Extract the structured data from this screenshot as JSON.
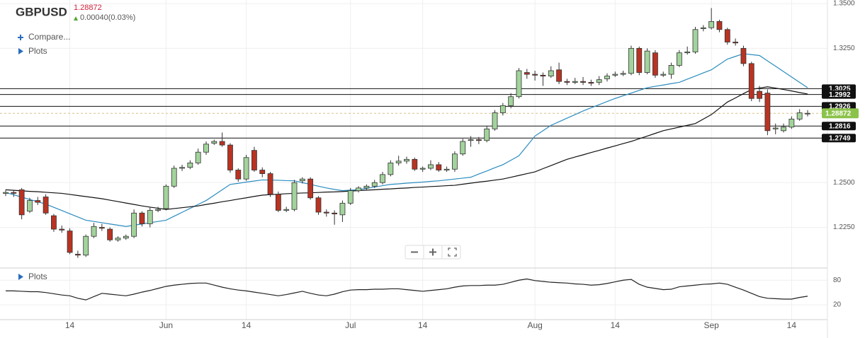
{
  "chart_data": [
    {
      "type": "candlestick",
      "title": "GBPUSD",
      "last_price": 1.28872,
      "change": "0.00040(0.03%)",
      "compare_label": "Compare...",
      "plots_label": "Plots",
      "categories": [
        null,
        null,
        null,
        null,
        null,
        null,
        null,
        null,
        "14",
        null,
        null,
        null,
        null,
        null,
        null,
        null,
        null,
        null,
        null,
        null,
        "Jun",
        null,
        null,
        null,
        null,
        null,
        null,
        null,
        null,
        null,
        "14",
        null,
        null,
        null,
        null,
        null,
        null,
        null,
        null,
        null,
        null,
        null,
        null,
        "Jul",
        null,
        null,
        null,
        null,
        null,
        null,
        null,
        null,
        "14",
        null,
        null,
        null,
        null,
        null,
        null,
        null,
        null,
        null,
        null,
        null,
        null,
        null,
        "Aug",
        null,
        null,
        null,
        null,
        null,
        null,
        null,
        null,
        null,
        "14",
        null,
        null,
        null,
        null,
        null,
        null,
        null,
        null,
        null,
        null,
        null,
        "Sep",
        null,
        null,
        null,
        null,
        null,
        null,
        null,
        null,
        null,
        "14",
        null,
        null
      ],
      "ohlc": [
        [
          1.244,
          1.246,
          1.2425,
          1.2445
        ],
        [
          1.2445,
          1.2455,
          1.242,
          1.244
        ],
        [
          1.246,
          1.247,
          1.2295,
          1.232
        ],
        [
          1.234,
          1.2415,
          1.233,
          1.24
        ],
        [
          1.24,
          1.242,
          1.2375,
          1.239
        ],
        [
          1.242,
          1.2435,
          1.232,
          1.233
        ],
        [
          1.2315,
          1.2325,
          1.2225,
          1.224
        ],
        [
          1.224,
          1.226,
          1.222,
          1.2235
        ],
        [
          1.223,
          1.2245,
          1.21,
          1.211
        ],
        [
          1.21,
          1.212,
          1.208,
          1.2095
        ],
        [
          1.2095,
          1.221,
          1.2085,
          1.22
        ],
        [
          1.22,
          1.2275,
          1.219,
          1.2255
        ],
        [
          1.225,
          1.227,
          1.223,
          1.2245
        ],
        [
          1.224,
          1.225,
          1.217,
          1.218
        ],
        [
          1.218,
          1.22,
          1.217,
          1.219
        ],
        [
          1.219,
          1.221,
          1.218,
          1.22
        ],
        [
          1.22,
          1.235,
          1.219,
          1.233
        ],
        [
          1.233,
          1.234,
          1.2255,
          1.227
        ],
        [
          1.227,
          1.236,
          1.225,
          1.2345
        ],
        [
          1.2345,
          1.2365,
          1.2335,
          1.235
        ],
        [
          1.2355,
          1.249,
          1.2345,
          1.248
        ],
        [
          1.248,
          1.2595,
          1.247,
          1.258
        ],
        [
          1.258,
          1.26,
          1.2565,
          1.2585
        ],
        [
          1.2585,
          1.2625,
          1.2575,
          1.261
        ],
        [
          1.261,
          1.269,
          1.26,
          1.267
        ],
        [
          1.267,
          1.273,
          1.2655,
          1.2715
        ],
        [
          1.272,
          1.274,
          1.271,
          1.273
        ],
        [
          1.273,
          1.278,
          1.27,
          1.271
        ],
        [
          1.271,
          1.272,
          1.2555,
          1.257
        ],
        [
          1.257,
          1.258,
          1.2505,
          1.252
        ],
        [
          1.252,
          1.2655,
          1.251,
          1.264
        ],
        [
          1.268,
          1.27,
          1.256,
          1.257
        ],
        [
          1.257,
          1.2585,
          1.253,
          1.255
        ],
        [
          1.255,
          1.256,
          1.242,
          1.2435
        ],
        [
          1.2435,
          1.245,
          1.2335,
          1.2345
        ],
        [
          1.2345,
          1.2365,
          1.2335,
          1.235
        ],
        [
          1.235,
          1.2515,
          1.234,
          1.25
        ],
        [
          1.251,
          1.253,
          1.2495,
          1.252
        ],
        [
          1.252,
          1.253,
          1.2405,
          1.2415
        ],
        [
          1.2415,
          1.2425,
          1.232,
          1.2335
        ],
        [
          1.2335,
          1.235,
          1.231,
          1.233
        ],
        [
          1.233,
          1.2345,
          1.2265,
          1.2325
        ],
        [
          1.232,
          1.24,
          1.228,
          1.2385
        ],
        [
          1.2385,
          1.247,
          1.2375,
          1.2455
        ],
        [
          1.2455,
          1.248,
          1.2445,
          1.247
        ],
        [
          1.247,
          1.249,
          1.246,
          1.248
        ],
        [
          1.248,
          1.2515,
          1.247,
          1.25
        ],
        [
          1.25,
          1.256,
          1.249,
          1.2545
        ],
        [
          1.2545,
          1.2625,
          1.2535,
          1.261
        ],
        [
          1.261,
          1.265,
          1.2595,
          1.262
        ],
        [
          1.262,
          1.2645,
          1.2605,
          1.263
        ],
        [
          1.263,
          1.264,
          1.2565,
          1.2575
        ],
        [
          1.2575,
          1.259,
          1.256,
          1.258
        ],
        [
          1.258,
          1.2625,
          1.257,
          1.26
        ],
        [
          1.26,
          1.2615,
          1.256,
          1.257
        ],
        [
          1.257,
          1.259,
          1.256,
          1.2575
        ],
        [
          1.2575,
          1.2675,
          1.256,
          1.266
        ],
        [
          1.266,
          1.2745,
          1.265,
          1.273
        ],
        [
          1.2735,
          1.276,
          1.27,
          1.274
        ],
        [
          1.274,
          1.2755,
          1.2715,
          1.2735
        ],
        [
          1.2735,
          1.2815,
          1.2725,
          1.28
        ],
        [
          1.28,
          1.2905,
          1.279,
          1.289
        ],
        [
          1.289,
          1.2945,
          1.2875,
          1.293
        ],
        [
          1.293,
          1.3,
          1.2915,
          1.298
        ],
        [
          1.298,
          1.314,
          1.297,
          1.3125
        ],
        [
          1.3115,
          1.3135,
          1.308,
          1.3105
        ],
        [
          1.3105,
          1.3125,
          1.307,
          1.31
        ],
        [
          1.31,
          1.3115,
          1.304,
          1.3095
        ],
        [
          1.3095,
          1.315,
          1.3085,
          1.3125
        ],
        [
          1.313,
          1.317,
          1.305,
          1.3065
        ],
        [
          1.3065,
          1.308,
          1.3045,
          1.306
        ],
        [
          1.306,
          1.3085,
          1.305,
          1.3065
        ],
        [
          1.3065,
          1.309,
          1.3045,
          1.306
        ],
        [
          1.306,
          1.3075,
          1.304,
          1.3055
        ],
        [
          1.306,
          1.3095,
          1.3045,
          1.3075
        ],
        [
          1.308,
          1.311,
          1.3065,
          1.3095
        ],
        [
          1.31,
          1.312,
          1.309,
          1.3105
        ],
        [
          1.3105,
          1.3125,
          1.3095,
          1.311
        ],
        [
          1.311,
          1.3265,
          1.31,
          1.325
        ],
        [
          1.325,
          1.326,
          1.31,
          1.3115
        ],
        [
          1.3115,
          1.325,
          1.3105,
          1.3235
        ],
        [
          1.3225,
          1.324,
          1.3085,
          1.31
        ],
        [
          1.31,
          1.312,
          1.309,
          1.3105
        ],
        [
          1.3105,
          1.317,
          1.308,
          1.3155
        ],
        [
          1.3155,
          1.324,
          1.3145,
          1.3225
        ],
        [
          1.3225,
          1.326,
          1.3215,
          1.323
        ],
        [
          1.323,
          1.337,
          1.322,
          1.3355
        ],
        [
          1.336,
          1.338,
          1.3345,
          1.3365
        ],
        [
          1.3365,
          1.3475,
          1.3355,
          1.34
        ],
        [
          1.34,
          1.341,
          1.334,
          1.3355
        ],
        [
          1.3355,
          1.3365,
          1.327,
          1.3285
        ],
        [
          1.3285,
          1.3305,
          1.3265,
          1.328
        ],
        [
          1.325,
          1.3265,
          1.315,
          1.3165
        ],
        [
          1.3165,
          1.3175,
          1.2955,
          1.297
        ],
        [
          1.301,
          1.304,
          1.295,
          1.297
        ],
        [
          1.3,
          1.302,
          1.2765,
          1.279
        ],
        [
          1.28,
          1.283,
          1.277,
          1.2805
        ],
        [
          1.279,
          1.283,
          1.278,
          1.281
        ],
        [
          1.281,
          1.287,
          1.28,
          1.2855
        ],
        [
          1.2855,
          1.291,
          1.2845,
          1.289
        ],
        [
          1.2885,
          1.2905,
          1.287,
          1.28872
        ]
      ],
      "up_color": "#a3d39c",
      "down_color": "#b93322",
      "series": [
        {
          "color": "#2b8cbf",
          "values": [
            1.2445,
            1.2432,
            1.2419,
            1.2406,
            1.2393,
            1.238,
            1.2362,
            1.2344,
            1.2326,
            1.2308,
            1.229,
            1.2283,
            1.2276,
            1.2269,
            1.2262,
            1.2255,
            1.2262,
            1.2269,
            1.2276,
            1.2283,
            1.229,
            1.2312,
            1.2334,
            1.2356,
            1.2378,
            1.24,
            1.243,
            1.246,
            1.249,
            1.2496,
            1.2503,
            1.2509,
            1.2515,
            1.2514,
            1.2513,
            1.2511,
            1.251,
            1.25,
            1.249,
            1.248,
            1.247,
            1.2462,
            1.2455,
            1.2458,
            1.246,
            1.2468,
            1.2475,
            1.2483,
            1.249,
            1.2493,
            1.2497,
            1.25,
            1.2503,
            1.2507,
            1.251,
            1.2515,
            1.252,
            1.2525,
            1.253,
            1.2548,
            1.2565,
            1.2583,
            1.26,
            1.2625,
            1.265,
            1.2705,
            1.276,
            1.279,
            1.282,
            1.284,
            1.286,
            1.288,
            1.29,
            1.2918,
            1.2935,
            1.2953,
            1.297,
            1.2985,
            1.3,
            1.3015,
            1.303,
            1.3038,
            1.3045,
            1.3053,
            1.306,
            1.3078,
            1.3095,
            1.3113,
            1.313,
            1.316,
            1.319,
            1.3205,
            1.322,
            1.3215,
            1.321,
            1.318,
            1.315,
            1.312,
            1.309,
            1.306,
            1.303
          ]
        },
        {
          "color": "#111111",
          "values": [
            1.246,
            1.2457,
            1.2454,
            1.2451,
            1.2449,
            1.2446,
            1.2443,
            1.244,
            1.2434,
            1.2428,
            1.2422,
            1.2416,
            1.241,
            1.2402,
            1.2394,
            1.2386,
            1.2378,
            1.237,
            1.2363,
            1.2357,
            1.235,
            1.2355,
            1.236,
            1.2365,
            1.237,
            1.2378,
            1.2385,
            1.2393,
            1.24,
            1.2408,
            1.2415,
            1.2423,
            1.243,
            1.2433,
            1.2435,
            1.2438,
            1.244,
            1.2442,
            1.2443,
            1.2445,
            1.2447,
            1.2448,
            1.245,
            1.2453,
            1.2455,
            1.2458,
            1.246,
            1.2463,
            1.2465,
            1.2468,
            1.247,
            1.2473,
            1.2475,
            1.2478,
            1.248,
            1.2483,
            1.2485,
            1.2491,
            1.2497,
            1.2503,
            1.2508,
            1.2514,
            1.252,
            1.253,
            1.254,
            1.255,
            1.256,
            1.2578,
            1.2595,
            1.2613,
            1.263,
            1.2643,
            1.2655,
            1.2668,
            1.268,
            1.2693,
            1.2705,
            1.2718,
            1.273,
            1.2745,
            1.276,
            1.2775,
            1.279,
            1.28,
            1.281,
            1.282,
            1.283,
            1.2855,
            1.288,
            1.2915,
            1.295,
            1.2973,
            1.2997,
            1.302,
            1.3028,
            1.3035,
            1.3028,
            1.302,
            1.3012,
            1.3003,
            1.2995
          ]
        }
      ],
      "levels": [
        1.3025,
        1.2992,
        1.2926,
        1.2816,
        1.2749
      ],
      "ylim": [
        1.2027,
        1.352
      ],
      "yticks": [
        {
          "value": 1.35,
          "label": "1.3500"
        },
        {
          "value": 1.325,
          "label": "1.3250"
        },
        {
          "value": 1.25,
          "label": "1.2500"
        },
        {
          "value": 1.225,
          "label": "1.2250"
        }
      ],
      "grid": true
    },
    {
      "type": "line",
      "title": "Plots",
      "ylim": [
        -16,
        108
      ],
      "yticks": [
        80,
        20
      ],
      "series": [
        {
          "color": "#222222",
          "values": [
            54,
            54,
            53,
            52,
            52,
            50,
            47,
            44,
            42,
            36,
            32,
            40,
            48,
            46,
            44,
            42,
            46,
            51,
            55,
            60,
            65,
            68,
            70,
            72,
            73,
            73,
            68,
            63,
            59,
            56,
            54,
            51,
            48,
            45,
            42,
            45,
            49,
            53,
            48,
            44,
            42,
            46,
            52,
            56,
            57,
            57,
            58,
            58,
            59,
            59,
            57,
            55,
            53,
            55,
            57,
            59,
            63,
            66,
            67,
            67,
            68,
            68,
            70,
            75,
            80,
            83,
            79,
            77,
            75,
            74,
            73,
            71,
            70,
            68,
            69,
            72,
            76,
            80,
            82,
            70,
            63,
            60,
            57,
            58,
            64,
            66,
            68,
            70,
            71,
            73,
            70,
            63,
            56,
            48,
            40,
            36,
            35,
            34,
            34,
            38,
            41
          ]
        }
      ]
    }
  ]
}
